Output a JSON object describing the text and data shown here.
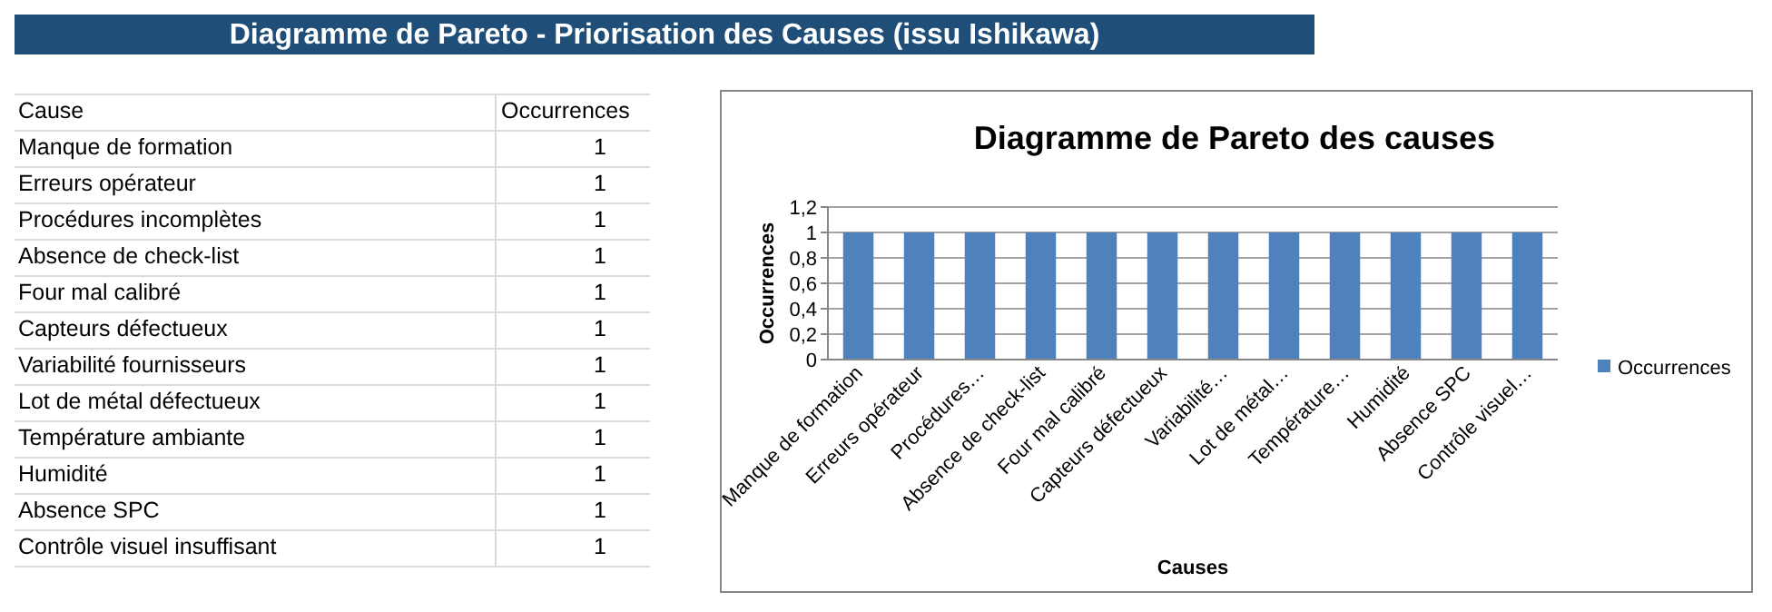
{
  "chart_data": {
    "type": "bar",
    "title": "Diagramme de Pareto - Priorisation des Causes (issu Ishikawa)",
    "subtitle": "Diagramme de Pareto des causes",
    "categories": [
      "Manque de formation",
      "Erreurs opérateur",
      "Procédures…",
      "Absence de check-list",
      "Four mal calibré",
      "Capteurs défectueux",
      "Variabilité…",
      "Lot de métal…",
      "Température…",
      "Humidité",
      "Absence SPC",
      "Contrôle visuel…"
    ],
    "series": [
      {
        "name": "Occurrences",
        "color": "#4f81bd",
        "values": [
          1,
          1,
          1,
          1,
          1,
          1,
          1,
          1,
          1,
          1,
          1,
          1
        ]
      }
    ],
    "xlabel": "Causes",
    "ylabel": "Occurrences",
    "ylim": [
      0,
      1.2
    ],
    "yticks": [
      0,
      {
        "value": 0.2,
        "label": "0,2"
      },
      {
        "value": 0.4,
        "label": "0,4"
      },
      {
        "value": 0.6,
        "label": "0,6"
      },
      {
        "value": 0.8,
        "label": "0,8"
      },
      1,
      {
        "value": 1.2,
        "label": "1,2"
      }
    ],
    "grid": "y",
    "legend": "right",
    "annotations": [
      "Cause",
      "Occurrences",
      "Manque de formation",
      "1",
      "Erreurs opérateur",
      "1",
      "Procédures incomplètes",
      "1",
      "Absence de check-list",
      "1",
      "Four mal calibré",
      "1",
      "Capteurs défectueux",
      "1",
      "Variabilité fournisseurs",
      "1",
      "Lot de métal défectueux",
      "1",
      "Température ambiante",
      "1",
      "Humidité",
      "1",
      "Absence SPC",
      "1",
      "Contrôle visuel insuffisant",
      "1"
    ]
  }
}
